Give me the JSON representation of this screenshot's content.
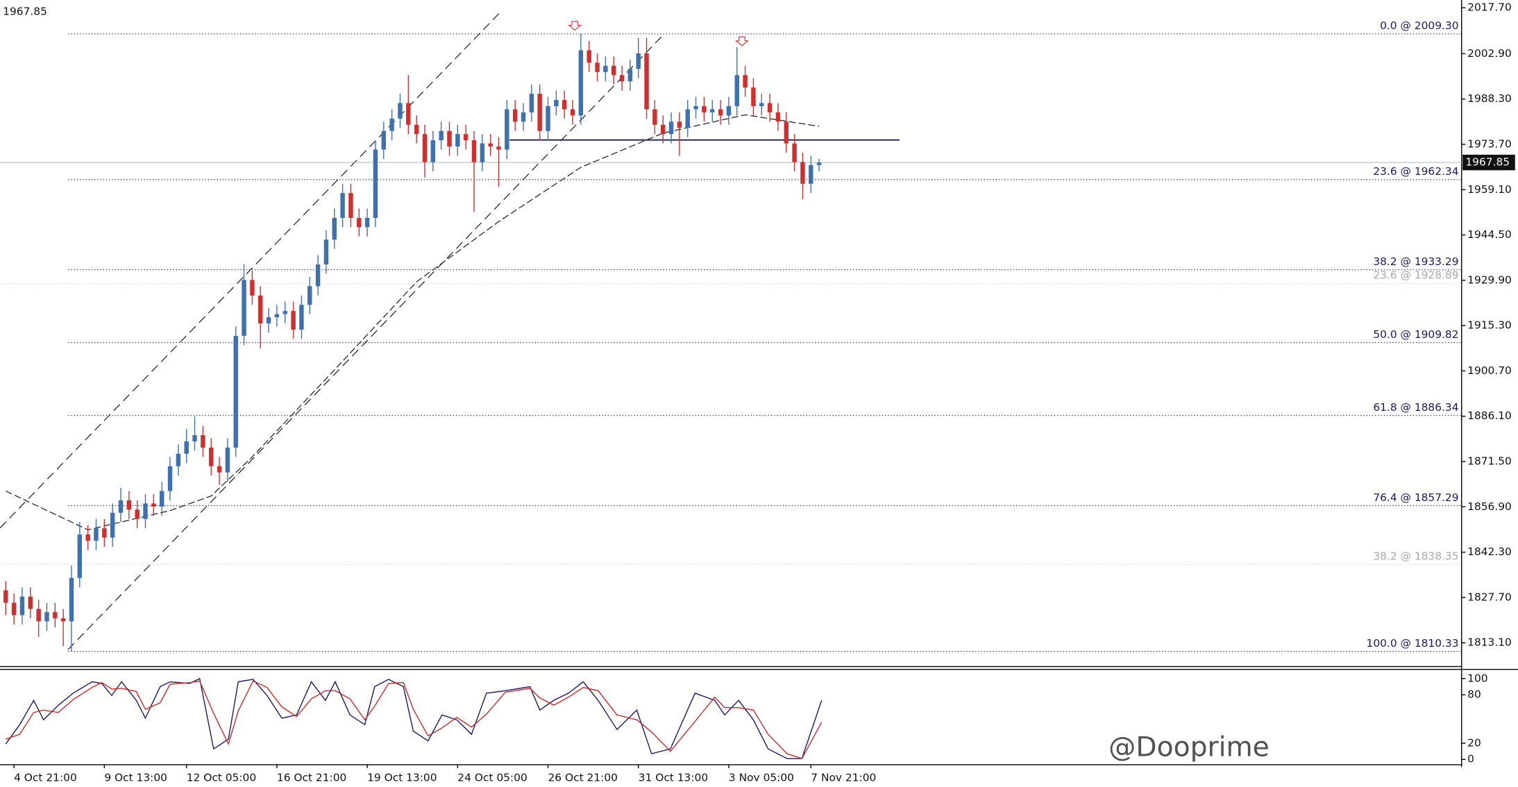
{
  "chart_data": [
    {
      "type": "candlestick",
      "last_price": 1967.85,
      "up_color": "#3f72ad",
      "down_color": "#cf2f2f",
      "xlim": [
        -0.7,
        177.2
      ],
      "ylim": [
        1805.3,
        2020.2
      ],
      "yticks": [
        {
          "value": 2017.7,
          "label": "2017.70"
        },
        {
          "value": 2002.9,
          "label": "2002.90"
        },
        {
          "value": 1988.3,
          "label": "1988.30"
        },
        {
          "value": 1973.7,
          "label": "1973.70"
        },
        {
          "value": 1959.1,
          "label": "1959.10"
        },
        {
          "value": 1944.5,
          "label": "1944.50"
        },
        {
          "value": 1929.9,
          "label": "1929.90"
        },
        {
          "value": 1915.3,
          "label": "1915.30"
        },
        {
          "value": 1900.7,
          "label": "1900.70"
        },
        {
          "value": 1886.1,
          "label": "1886.10"
        },
        {
          "value": 1871.5,
          "label": "1871.50"
        },
        {
          "value": 1856.9,
          "label": "1856.90"
        },
        {
          "value": 1842.3,
          "label": "1842.30"
        },
        {
          "value": 1827.7,
          "label": "1827.70"
        },
        {
          "value": 1813.1,
          "label": "1813.10"
        }
      ],
      "xticks": [
        {
          "value": 1,
          "label": "4 Oct 21:00"
        },
        {
          "value": 12,
          "label": "9 Oct 13:00"
        },
        {
          "value": 22,
          "label": "12 Oct 05:00"
        },
        {
          "value": 33,
          "label": "16 Oct 21:00"
        },
        {
          "value": 44,
          "label": "19 Oct 13:00"
        },
        {
          "value": 55,
          "label": "24 Oct 05:00"
        },
        {
          "value": 66,
          "label": "26 Oct 21:00"
        },
        {
          "value": 77,
          "label": "31 Oct 13:00"
        },
        {
          "value": 88,
          "label": "3 Nov 05:00"
        },
        {
          "value": 98,
          "label": "7 Nov 21:00"
        }
      ],
      "open": [
        1830,
        1826,
        1822,
        1828,
        1824,
        1820,
        1823,
        1821,
        1820,
        1834,
        1848,
        1846,
        1850,
        1847,
        1855,
        1859,
        1856,
        1853,
        1858,
        1857,
        1862,
        1870,
        1874,
        1878,
        1880,
        1876,
        1870,
        1868,
        1876,
        1912,
        1930,
        1925,
        1916,
        1918,
        1919,
        1920,
        1914,
        1922,
        1928,
        1935,
        1943,
        1950,
        1958,
        1950,
        1947,
        1950,
        1972,
        1978,
        1982,
        1987,
        1980,
        1977,
        1968,
        1975,
        1978,
        1973,
        1977,
        1975,
        1968,
        1974,
        1973,
        1972,
        1985,
        1981,
        1984,
        1990,
        1978,
        1986,
        1988,
        1985,
        1983,
        2004,
        2000,
        1997,
        1999,
        1996,
        1994,
        1998,
        2003,
        1985,
        1980,
        1977,
        1981,
        1979,
        1985,
        1986,
        1984,
        1985,
        1983,
        1986,
        1996,
        1992,
        1986,
        1987,
        1984,
        1981,
        1974,
        1968,
        1961,
        1967
      ],
      "high": [
        1833,
        1829,
        1831,
        1831,
        1827,
        1826,
        1826,
        1824,
        1838,
        1852,
        1851,
        1853,
        1853,
        1858,
        1863,
        1862,
        1859,
        1861,
        1861,
        1865,
        1873,
        1877,
        1882,
        1886,
        1883,
        1879,
        1873,
        1879,
        1915,
        1935,
        1933,
        1928,
        1921,
        1922,
        1923,
        1923,
        1925,
        1931,
        1938,
        1946,
        1953,
        1961,
        1961,
        1953,
        1953,
        1975,
        1981,
        1985,
        1990,
        1996,
        1983,
        1980,
        1978,
        1981,
        1981,
        1980,
        1980,
        1978,
        1977,
        1977,
        1976,
        1988,
        1988,
        1987,
        1993,
        1993,
        1989,
        1991,
        1991,
        1988,
        2009.3,
        2007,
        2003,
        2002,
        2002,
        1999,
        2001,
        2008,
        2008,
        1988,
        1983,
        1984,
        1984,
        1988,
        1989,
        1989,
        1988,
        1988,
        1989,
        2005,
        1999,
        1995,
        1990,
        1990,
        1987,
        1984,
        1977,
        1971,
        1970,
        1969
      ],
      "low": [
        1822,
        1819,
        1819,
        1821,
        1815,
        1817,
        1818,
        1812,
        1810.33,
        1831,
        1843,
        1843,
        1844,
        1844,
        1852,
        1853,
        1850,
        1850,
        1854,
        1854,
        1859,
        1867,
        1871,
        1875,
        1873,
        1867,
        1864,
        1865,
        1873,
        1909,
        1922,
        1908,
        1913,
        1915,
        1916,
        1911,
        1911,
        1919,
        1925,
        1932,
        1940,
        1947,
        1947,
        1944,
        1944,
        1947,
        1969,
        1975,
        1979,
        1977,
        1974,
        1963,
        1965,
        1972,
        1970,
        1970,
        1972,
        1952,
        1965,
        1970,
        1960,
        1969,
        1978,
        1978,
        1981,
        1975,
        1975,
        1983,
        1982,
        1980,
        1980,
        1997,
        1994,
        1994,
        1993,
        1991,
        1991,
        1995,
        1982,
        1977,
        1974,
        1974,
        1970,
        1976,
        1982,
        1981,
        1981,
        1980,
        1980,
        1983,
        1989,
        1983,
        1983,
        1981,
        1978,
        1971,
        1965,
        1956,
        1958,
        1965
      ],
      "close": [
        1826,
        1822,
        1828,
        1824,
        1820,
        1823,
        1821,
        1820,
        1834,
        1848,
        1846,
        1850,
        1847,
        1855,
        1859,
        1856,
        1853,
        1858,
        1857,
        1862,
        1870,
        1874,
        1878,
        1880,
        1876,
        1870,
        1868,
        1876,
        1912,
        1930,
        1925,
        1916,
        1918,
        1919,
        1920,
        1914,
        1922,
        1928,
        1935,
        1943,
        1950,
        1958,
        1950,
        1947,
        1950,
        1972,
        1978,
        1982,
        1987,
        1980,
        1977,
        1968,
        1975,
        1978,
        1973,
        1977,
        1975,
        1968,
        1974,
        1973,
        1972,
        1985,
        1981,
        1984,
        1990,
        1978,
        1986,
        1988,
        1985,
        1983,
        2004,
        2000,
        1997,
        1999,
        1996,
        1994,
        1998,
        2003,
        1985,
        1980,
        1977,
        1981,
        1979,
        1985,
        1986,
        1984,
        1985,
        1983,
        1986,
        1996,
        1992,
        1986,
        1987,
        1984,
        1981,
        1974,
        1968,
        1961,
        1967,
        1967.85
      ],
      "moving_average": {
        "x": [
          0,
          10,
          20,
          25,
          30,
          40,
          50,
          60,
          70,
          80,
          90,
          99
        ],
        "values": [
          1862,
          1849.5,
          1855.7,
          1860.4,
          1873,
          1901,
          1929.4,
          1948.8,
          1966.3,
          1977.3,
          1983.2,
          1979.5
        ]
      },
      "level_line": 1975.1,
      "fib_levels": [
        {
          "label": "0.0 @ 2009.30",
          "value": 2009.3,
          "color": "#1a1a5e"
        },
        {
          "label": "23.6 @ 1962.34",
          "value": 1962.34,
          "color": "#1a1a5e"
        },
        {
          "label": "38.2 @ 1933.29",
          "value": 1933.29,
          "color": "#1a1a5e"
        },
        {
          "label": "23.6 @ 1928.89",
          "value": 1928.89,
          "color": "#a8a8a8"
        },
        {
          "label": "50.0 @ 1909.82",
          "value": 1909.82,
          "color": "#1a1a5e"
        },
        {
          "label": "61.8 @ 1886.34",
          "value": 1886.34,
          "color": "#1a1a5e"
        },
        {
          "label": "76.4 @ 1857.29",
          "value": 1857.29,
          "color": "#1a1a5e"
        },
        {
          "label": "38.2 @ 1838.35",
          "value": 1838.35,
          "color": "#a8a8a8"
        },
        {
          "label": "100.0 @ 1810.33",
          "value": 1810.33,
          "color": "#1a1a5e"
        }
      ],
      "watermark": "@Dooprime"
    },
    {
      "type": "line",
      "xlim": [
        -0.7,
        177.2
      ],
      "ylim": [
        -6,
        110.7
      ],
      "yticks": [
        100,
        80,
        20,
        0
      ],
      "x": [
        0,
        1.7,
        3.4,
        4.6,
        6.4,
        8.2,
        10.5,
        11.7,
        12.9,
        14.1,
        15.9,
        17,
        18.8,
        20,
        22.4,
        23.6,
        25.3,
        27.1,
        28.3,
        30.1,
        31.8,
        33.6,
        35.4,
        37.2,
        38.9,
        40.1,
        41.9,
        43.7,
        44.9,
        46.6,
        48.4,
        49.6,
        51.4,
        53.1,
        54.9,
        56.7,
        58.5,
        60.8,
        63.8,
        65,
        66.7,
        68.5,
        70.3,
        72.1,
        74.4,
        76.8,
        78.6,
        80.9,
        83.9,
        86.3,
        87.5,
        89.2,
        91,
        92.8,
        95.1,
        96.9,
        99.3
      ],
      "series": [
        {
          "color": "#1a1a5e",
          "values": [
            19,
            43,
            73,
            49,
            67,
            82,
            96,
            94,
            79,
            96,
            73,
            51,
            90,
            96,
            94,
            100,
            13,
            25,
            96,
            99,
            79,
            51,
            55,
            96,
            73,
            96,
            55,
            43,
            90,
            99,
            90,
            35,
            23,
            55,
            49,
            31,
            82,
            85,
            90,
            61,
            73,
            82,
            96,
            73,
            37,
            61,
            7,
            13,
            82,
            73,
            55,
            73,
            49,
            13,
            1,
            1,
            73
          ]
        },
        {
          "color": "#cc2a2a",
          "values": [
            25,
            31,
            58,
            61,
            58,
            74,
            89,
            95,
            87,
            88,
            84,
            62,
            70,
            93,
            95,
            97,
            57,
            19,
            60,
            97,
            89,
            65,
            53,
            75,
            85,
            85,
            75,
            49,
            66,
            94,
            95,
            62,
            29,
            39,
            52,
            40,
            56,
            83,
            88,
            76,
            67,
            77,
            89,
            85,
            55,
            49,
            34,
            10,
            47,
            77,
            64,
            64,
            61,
            31,
            7,
            1,
            46
          ]
        }
      ]
    }
  ]
}
